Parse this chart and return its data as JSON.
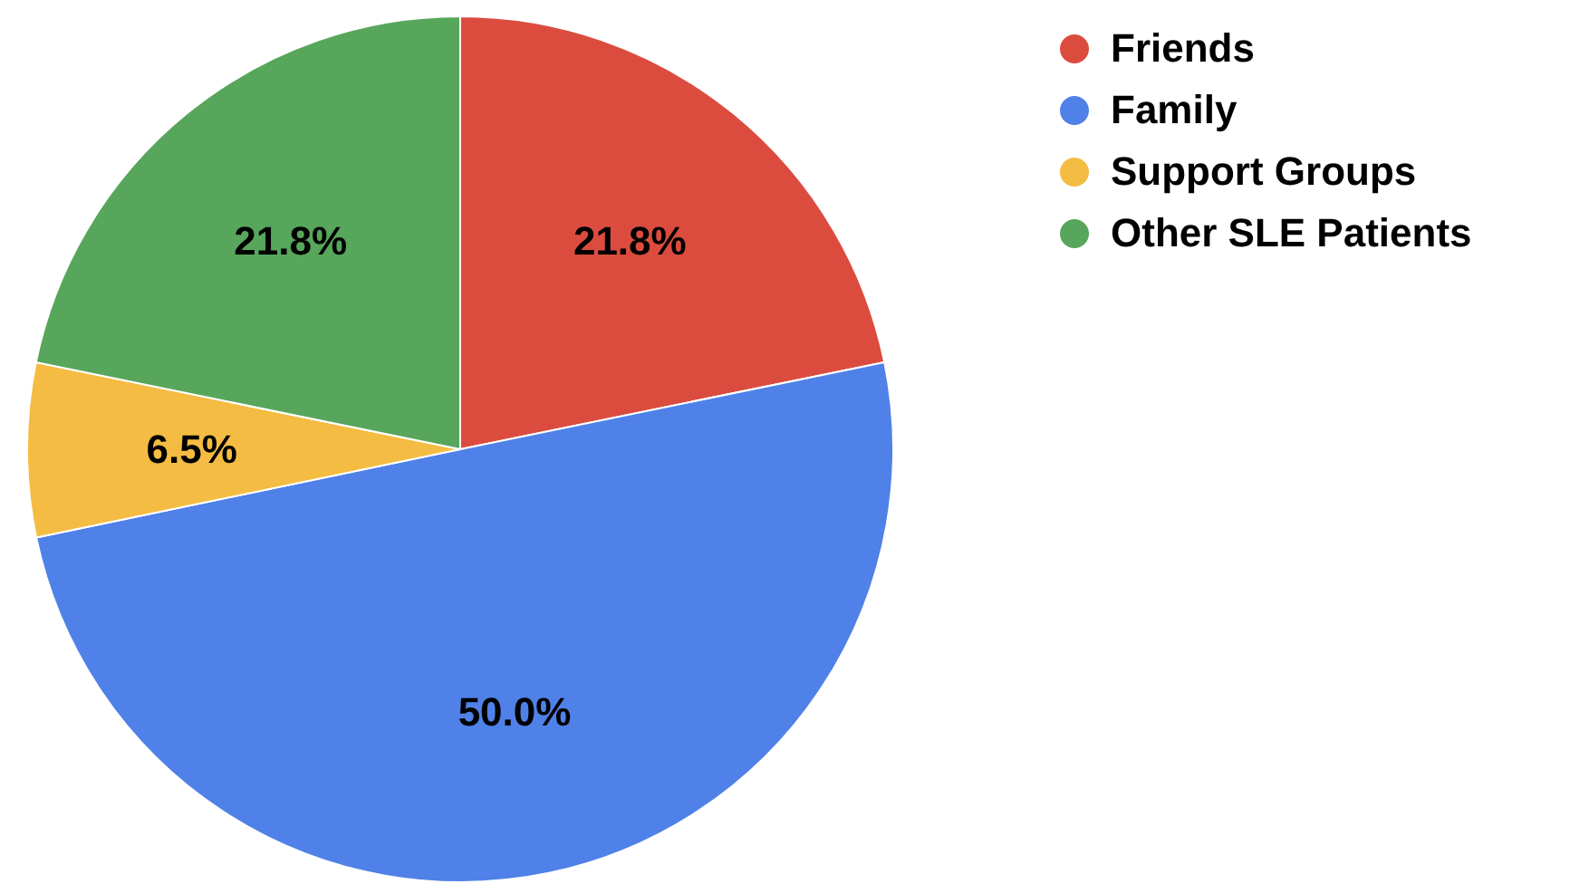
{
  "chart_data": {
    "type": "pie",
    "categories": [
      "Friends",
      "Family",
      "Support Groups",
      "Other SLE Patients"
    ],
    "values": [
      21.8,
      50.0,
      6.5,
      21.8
    ],
    "colors": [
      "#db4c3f",
      "#4f81e8",
      "#f4bc42",
      "#57a65b"
    ],
    "value_labels": [
      "21.8%",
      "50.0%",
      "6.5%",
      "21.8%"
    ],
    "legend": "top right"
  }
}
